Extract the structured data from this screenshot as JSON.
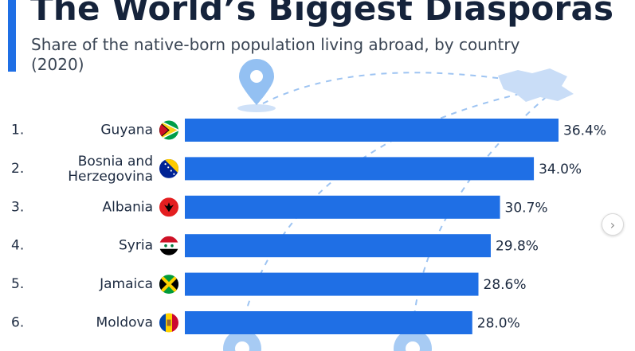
{
  "header": {
    "title": "The World’s Biggest Diasporas",
    "subtitle": "Share of the native-born population living abroad, by country (2020)"
  },
  "colors": {
    "accent": "#1f6fe5",
    "bar": "#1f6fe5",
    "decoration": "#bcd6f5"
  },
  "chart_data": {
    "type": "bar",
    "orientation": "horizontal",
    "title": "The World’s Biggest Diasporas",
    "subtitle": "Share of the native-born population living abroad, by country (2020)",
    "xlabel": "",
    "ylabel": "",
    "unit": "%",
    "ranks": [
      "1.",
      "2.",
      "3.",
      "4.",
      "5.",
      "6."
    ],
    "categories": [
      "Guyana",
      "Bosnia and Herzegovina",
      "Albania",
      "Syria",
      "Jamaica",
      "Moldova"
    ],
    "values": [
      36.4,
      34.0,
      30.7,
      29.8,
      28.6,
      28.0
    ],
    "value_labels": [
      "36.4%",
      "34.0%",
      "30.7%",
      "29.8%",
      "28.6%",
      "28.0%"
    ],
    "flags": [
      "guyana-flag-icon",
      "bosnia-flag-icon",
      "albania-flag-icon",
      "syria-flag-icon",
      "jamaica-flag-icon",
      "moldova-flag-icon"
    ],
    "grid": false,
    "legend": "none"
  },
  "navigation": {
    "next_icon": "chevron-right-icon",
    "next_glyph": "›"
  }
}
